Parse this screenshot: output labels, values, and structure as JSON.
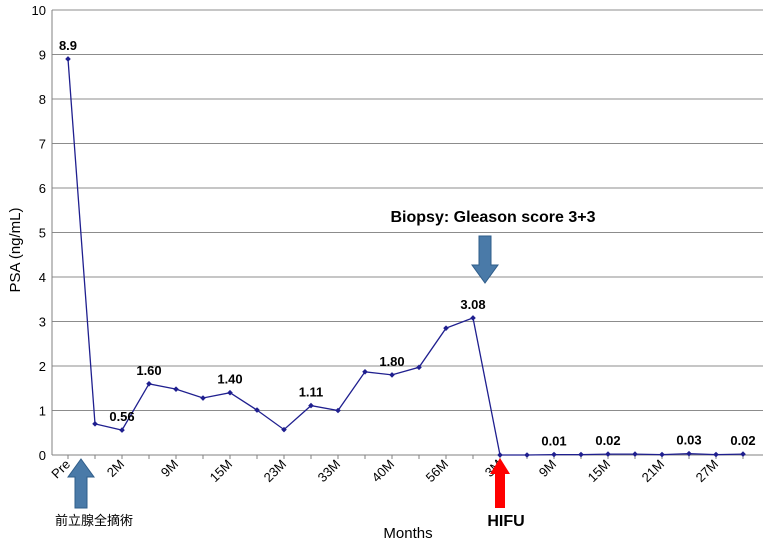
{
  "chart_data": {
    "type": "line",
    "xlabel": "Months",
    "ylabel": "PSA (ng/mL)",
    "ylim": [
      0,
      10
    ],
    "yticks": [
      0,
      1,
      2,
      3,
      4,
      5,
      6,
      7,
      8,
      9,
      10
    ],
    "grid": "horizontal",
    "legend": "none",
    "line_color": "#1f1f8f",
    "x_ticklabels": [
      {
        "i": 0,
        "label": "Pre"
      },
      {
        "i": 2,
        "label": "2M"
      },
      {
        "i": 4,
        "label": "9M"
      },
      {
        "i": 6,
        "label": "15M"
      },
      {
        "i": 8,
        "label": "23M"
      },
      {
        "i": 10,
        "label": "33M"
      },
      {
        "i": 12,
        "label": "40M"
      },
      {
        "i": 14,
        "label": "56M"
      },
      {
        "i": 16,
        "label": "3M"
      },
      {
        "i": 18,
        "label": "9M"
      },
      {
        "i": 20,
        "label": "15M"
      },
      {
        "i": 22,
        "label": "21M"
      },
      {
        "i": 24,
        "label": "27M"
      }
    ],
    "series": [
      {
        "values": [
          8.9,
          0.7,
          0.56,
          1.6,
          1.48,
          1.28,
          1.4,
          1.01,
          0.57,
          1.11,
          1.0,
          1.87,
          1.8,
          1.97,
          2.85,
          3.08,
          0.0,
          0.0,
          0.01,
          0.01,
          0.02,
          0.02,
          0.01,
          0.03,
          0.01,
          0.02
        ]
      }
    ],
    "data_labels": [
      {
        "i": 0,
        "text": "8.9"
      },
      {
        "i": 2,
        "text": "0.56"
      },
      {
        "i": 3,
        "text": "1.60"
      },
      {
        "i": 6,
        "text": "1.40"
      },
      {
        "i": 9,
        "text": "1.11"
      },
      {
        "i": 12,
        "text": "1.80"
      },
      {
        "i": 15,
        "text": "3.08"
      },
      {
        "i": 18,
        "text": "0.01"
      },
      {
        "i": 20,
        "text": "0.02"
      },
      {
        "i": 23,
        "text": "0.03"
      },
      {
        "i": 25,
        "text": "0.02"
      }
    ],
    "annotations": {
      "biopsy": {
        "text": "Biopsy: Gleason score 3+3",
        "arrow_color": "#4a7aa8"
      },
      "prostatectomy": {
        "text": "前立腺全摘術",
        "arrow_color": "#4a7aa8"
      },
      "hifu": {
        "text": "HIFU",
        "arrow_color": "#ff0000"
      }
    }
  }
}
